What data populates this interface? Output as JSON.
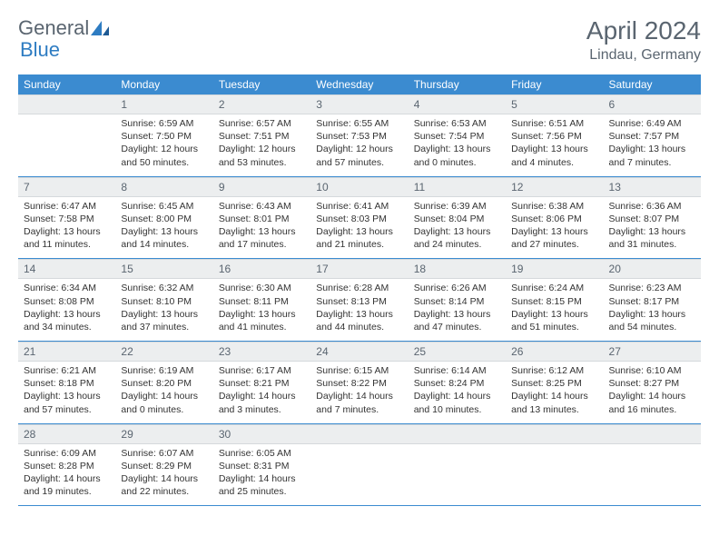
{
  "logo": {
    "text1": "General",
    "text2": "Blue"
  },
  "title": "April 2024",
  "location": "Lindau, Germany",
  "day_headers": [
    "Sunday",
    "Monday",
    "Tuesday",
    "Wednesday",
    "Thursday",
    "Friday",
    "Saturday"
  ],
  "colors": {
    "header_bg": "#3b8bd0",
    "header_text": "#ffffff",
    "daynum_bg": "#eceeef",
    "daynum_text": "#5a6570",
    "body_text": "#333333",
    "logo_gray": "#5a6570",
    "logo_blue": "#2e7cc2"
  },
  "weeks": [
    [
      {
        "num": "",
        "sunrise": "",
        "sunset": "",
        "daylight": ""
      },
      {
        "num": "1",
        "sunrise": "Sunrise: 6:59 AM",
        "sunset": "Sunset: 7:50 PM",
        "daylight": "Daylight: 12 hours and 50 minutes."
      },
      {
        "num": "2",
        "sunrise": "Sunrise: 6:57 AM",
        "sunset": "Sunset: 7:51 PM",
        "daylight": "Daylight: 12 hours and 53 minutes."
      },
      {
        "num": "3",
        "sunrise": "Sunrise: 6:55 AM",
        "sunset": "Sunset: 7:53 PM",
        "daylight": "Daylight: 12 hours and 57 minutes."
      },
      {
        "num": "4",
        "sunrise": "Sunrise: 6:53 AM",
        "sunset": "Sunset: 7:54 PM",
        "daylight": "Daylight: 13 hours and 0 minutes."
      },
      {
        "num": "5",
        "sunrise": "Sunrise: 6:51 AM",
        "sunset": "Sunset: 7:56 PM",
        "daylight": "Daylight: 13 hours and 4 minutes."
      },
      {
        "num": "6",
        "sunrise": "Sunrise: 6:49 AM",
        "sunset": "Sunset: 7:57 PM",
        "daylight": "Daylight: 13 hours and 7 minutes."
      }
    ],
    [
      {
        "num": "7",
        "sunrise": "Sunrise: 6:47 AM",
        "sunset": "Sunset: 7:58 PM",
        "daylight": "Daylight: 13 hours and 11 minutes."
      },
      {
        "num": "8",
        "sunrise": "Sunrise: 6:45 AM",
        "sunset": "Sunset: 8:00 PM",
        "daylight": "Daylight: 13 hours and 14 minutes."
      },
      {
        "num": "9",
        "sunrise": "Sunrise: 6:43 AM",
        "sunset": "Sunset: 8:01 PM",
        "daylight": "Daylight: 13 hours and 17 minutes."
      },
      {
        "num": "10",
        "sunrise": "Sunrise: 6:41 AM",
        "sunset": "Sunset: 8:03 PM",
        "daylight": "Daylight: 13 hours and 21 minutes."
      },
      {
        "num": "11",
        "sunrise": "Sunrise: 6:39 AM",
        "sunset": "Sunset: 8:04 PM",
        "daylight": "Daylight: 13 hours and 24 minutes."
      },
      {
        "num": "12",
        "sunrise": "Sunrise: 6:38 AM",
        "sunset": "Sunset: 8:06 PM",
        "daylight": "Daylight: 13 hours and 27 minutes."
      },
      {
        "num": "13",
        "sunrise": "Sunrise: 6:36 AM",
        "sunset": "Sunset: 8:07 PM",
        "daylight": "Daylight: 13 hours and 31 minutes."
      }
    ],
    [
      {
        "num": "14",
        "sunrise": "Sunrise: 6:34 AM",
        "sunset": "Sunset: 8:08 PM",
        "daylight": "Daylight: 13 hours and 34 minutes."
      },
      {
        "num": "15",
        "sunrise": "Sunrise: 6:32 AM",
        "sunset": "Sunset: 8:10 PM",
        "daylight": "Daylight: 13 hours and 37 minutes."
      },
      {
        "num": "16",
        "sunrise": "Sunrise: 6:30 AM",
        "sunset": "Sunset: 8:11 PM",
        "daylight": "Daylight: 13 hours and 41 minutes."
      },
      {
        "num": "17",
        "sunrise": "Sunrise: 6:28 AM",
        "sunset": "Sunset: 8:13 PM",
        "daylight": "Daylight: 13 hours and 44 minutes."
      },
      {
        "num": "18",
        "sunrise": "Sunrise: 6:26 AM",
        "sunset": "Sunset: 8:14 PM",
        "daylight": "Daylight: 13 hours and 47 minutes."
      },
      {
        "num": "19",
        "sunrise": "Sunrise: 6:24 AM",
        "sunset": "Sunset: 8:15 PM",
        "daylight": "Daylight: 13 hours and 51 minutes."
      },
      {
        "num": "20",
        "sunrise": "Sunrise: 6:23 AM",
        "sunset": "Sunset: 8:17 PM",
        "daylight": "Daylight: 13 hours and 54 minutes."
      }
    ],
    [
      {
        "num": "21",
        "sunrise": "Sunrise: 6:21 AM",
        "sunset": "Sunset: 8:18 PM",
        "daylight": "Daylight: 13 hours and 57 minutes."
      },
      {
        "num": "22",
        "sunrise": "Sunrise: 6:19 AM",
        "sunset": "Sunset: 8:20 PM",
        "daylight": "Daylight: 14 hours and 0 minutes."
      },
      {
        "num": "23",
        "sunrise": "Sunrise: 6:17 AM",
        "sunset": "Sunset: 8:21 PM",
        "daylight": "Daylight: 14 hours and 3 minutes."
      },
      {
        "num": "24",
        "sunrise": "Sunrise: 6:15 AM",
        "sunset": "Sunset: 8:22 PM",
        "daylight": "Daylight: 14 hours and 7 minutes."
      },
      {
        "num": "25",
        "sunrise": "Sunrise: 6:14 AM",
        "sunset": "Sunset: 8:24 PM",
        "daylight": "Daylight: 14 hours and 10 minutes."
      },
      {
        "num": "26",
        "sunrise": "Sunrise: 6:12 AM",
        "sunset": "Sunset: 8:25 PM",
        "daylight": "Daylight: 14 hours and 13 minutes."
      },
      {
        "num": "27",
        "sunrise": "Sunrise: 6:10 AM",
        "sunset": "Sunset: 8:27 PM",
        "daylight": "Daylight: 14 hours and 16 minutes."
      }
    ],
    [
      {
        "num": "28",
        "sunrise": "Sunrise: 6:09 AM",
        "sunset": "Sunset: 8:28 PM",
        "daylight": "Daylight: 14 hours and 19 minutes."
      },
      {
        "num": "29",
        "sunrise": "Sunrise: 6:07 AM",
        "sunset": "Sunset: 8:29 PM",
        "daylight": "Daylight: 14 hours and 22 minutes."
      },
      {
        "num": "30",
        "sunrise": "Sunrise: 6:05 AM",
        "sunset": "Sunset: 8:31 PM",
        "daylight": "Daylight: 14 hours and 25 minutes."
      },
      {
        "num": "",
        "sunrise": "",
        "sunset": "",
        "daylight": ""
      },
      {
        "num": "",
        "sunrise": "",
        "sunset": "",
        "daylight": ""
      },
      {
        "num": "",
        "sunrise": "",
        "sunset": "",
        "daylight": ""
      },
      {
        "num": "",
        "sunrise": "",
        "sunset": "",
        "daylight": ""
      }
    ]
  ]
}
